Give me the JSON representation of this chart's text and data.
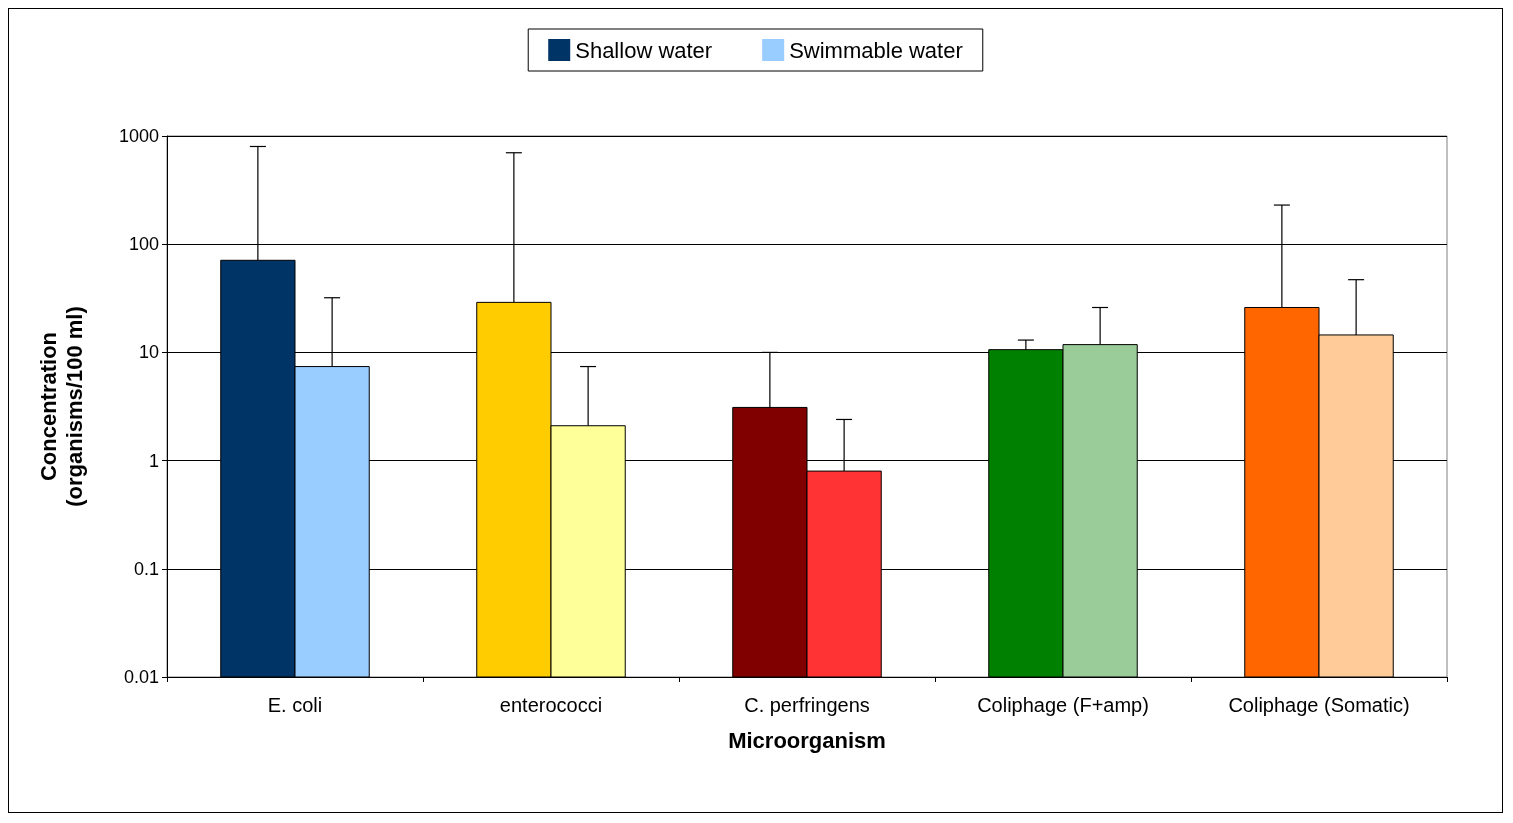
{
  "chart_data": {
    "type": "bar",
    "xlabel": "Microorganism",
    "ylabel": "Concentration\n(organisms/100 ml)",
    "categories": [
      "E. coli",
      "enterococci",
      "C. perfringens",
      "Coliphage (F+amp)",
      "Coliphage (Somatic)"
    ],
    "series": [
      {
        "name": "Shallow water",
        "color": "#003366",
        "colors": [
          "#003366",
          "#ffcc00",
          "#800000",
          "#008000",
          "#ff6600"
        ],
        "values": [
          71,
          29,
          3.1,
          10.6,
          26
        ],
        "errors": [
          [
            71,
            800
          ],
          [
            29,
            700
          ],
          [
            3.1,
            10
          ],
          [
            10.6,
            13
          ],
          [
            26,
            230
          ]
        ]
      },
      {
        "name": "Swimmable water",
        "color": "#99ccff",
        "colors": [
          "#99ccff",
          "#ffff99",
          "#ff3333",
          "#99cc99",
          "#ffcc99"
        ],
        "values": [
          7.4,
          2.1,
          0.8,
          11.8,
          14.5
        ],
        "errors": [
          [
            7.4,
            32
          ],
          [
            2.1,
            7.4
          ],
          [
            0.8,
            2.4
          ],
          [
            11.8,
            26
          ],
          [
            14.5,
            47
          ]
        ]
      }
    ],
    "log": "y",
    "ylim": [
      0.01,
      1000
    ],
    "yticks": [
      0.01,
      0.1,
      1,
      10,
      100,
      1000
    ],
    "grid": "y",
    "legend": "top"
  }
}
